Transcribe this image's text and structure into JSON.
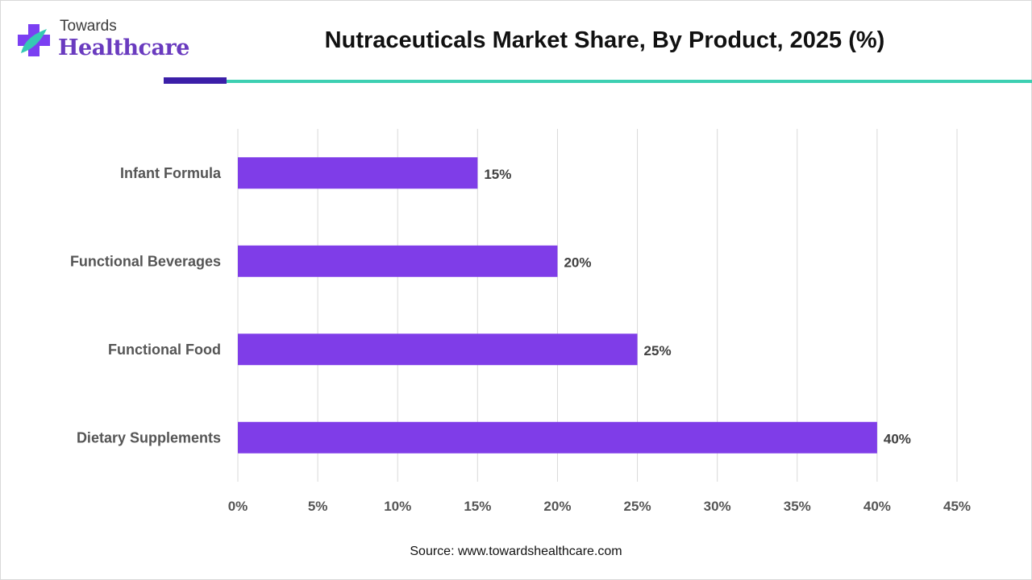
{
  "header": {
    "logo_top": "Towards",
    "logo_main": "Healthcare",
    "title": "Nutraceuticals Market Share, By Product, 2025 (%)"
  },
  "colors": {
    "bar": "#7f3de8",
    "logo_cross": "#7b3ff2",
    "logo_leaf": "#35c9b4",
    "rule_dark": "#3b1fa8",
    "rule_light": "#3dcfb2",
    "grid": "#d9d9d9"
  },
  "chart_data": {
    "type": "bar",
    "orientation": "horizontal",
    "title": "Nutraceuticals Market Share, By Product, 2025 (%)",
    "categories": [
      "Infant Formula",
      "Functional Beverages",
      "Functional Food",
      "Dietary Supplements"
    ],
    "values": [
      15,
      20,
      25,
      40
    ],
    "value_labels": [
      "15%",
      "20%",
      "25%",
      "40%"
    ],
    "xlim": [
      0,
      45
    ],
    "xticks": [
      0,
      5,
      10,
      15,
      20,
      25,
      30,
      35,
      40,
      45
    ],
    "xtick_labels": [
      "0%",
      "5%",
      "10%",
      "15%",
      "20%",
      "25%",
      "30%",
      "35%",
      "40%",
      "45%"
    ],
    "grid": true,
    "legend": "none"
  },
  "footer": {
    "source": "Source: www.towardshealthcare.com"
  }
}
